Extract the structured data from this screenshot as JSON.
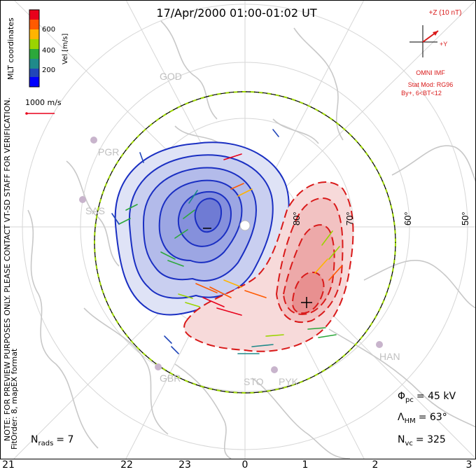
{
  "title": "17/Apr/2000 01:00-01:02 UT",
  "colorbar": {
    "label": "Vel [m/s]",
    "ticks": [
      "600",
      "400",
      "200"
    ],
    "colors": [
      "#e8001b",
      "#ff5a00",
      "#ffb400",
      "#9bd400",
      "#2ca83b",
      "#1f8a8a",
      "#2146b9",
      "#0000ff"
    ]
  },
  "coord_label": "MLT coordinates",
  "ref_vector": "1000 m/s",
  "imf": {
    "axis_z": "+Z (10 nT)",
    "axis_y": "+Y",
    "source": "OMNI IMF",
    "model_line1": "Stat Mod: RG96",
    "model_line2": "By+, 6<BT<12"
  },
  "notes": {
    "line1": "NOTE: FOR PREVIEW PURPOSES ONLY. PLEASE CONTACT VT-SD STAFF FOR VERIFICATION.",
    "line2": "FitOrder: 8, mapEX format"
  },
  "latitude_labels": [
    "80°",
    "70°",
    "60°",
    "50°"
  ],
  "mlt_labels": [
    "21",
    "22",
    "23",
    "0",
    "1",
    "2",
    "3"
  ],
  "stations": [
    "GOD",
    "PGR",
    "SAS",
    "GBR",
    "STO",
    "PYK",
    "HAN"
  ],
  "stats": {
    "rads": "N",
    "rads_sub": "rads",
    "rads_val": "= 7",
    "phi": "Φ",
    "phi_sub": "pc",
    "phi_val": "= 45 kV",
    "lambda": "Λ",
    "lambda_sub": "HM",
    "lambda_val": "= 63°",
    "nvc": "N",
    "nvc_sub": "vc",
    "nvc_val": "= 325"
  },
  "colors": {
    "negative_cell": "#1a2fc2",
    "positive_cell": "#d91a1a",
    "hmb": "#9bd400",
    "coast": "#c8c8c8"
  }
}
